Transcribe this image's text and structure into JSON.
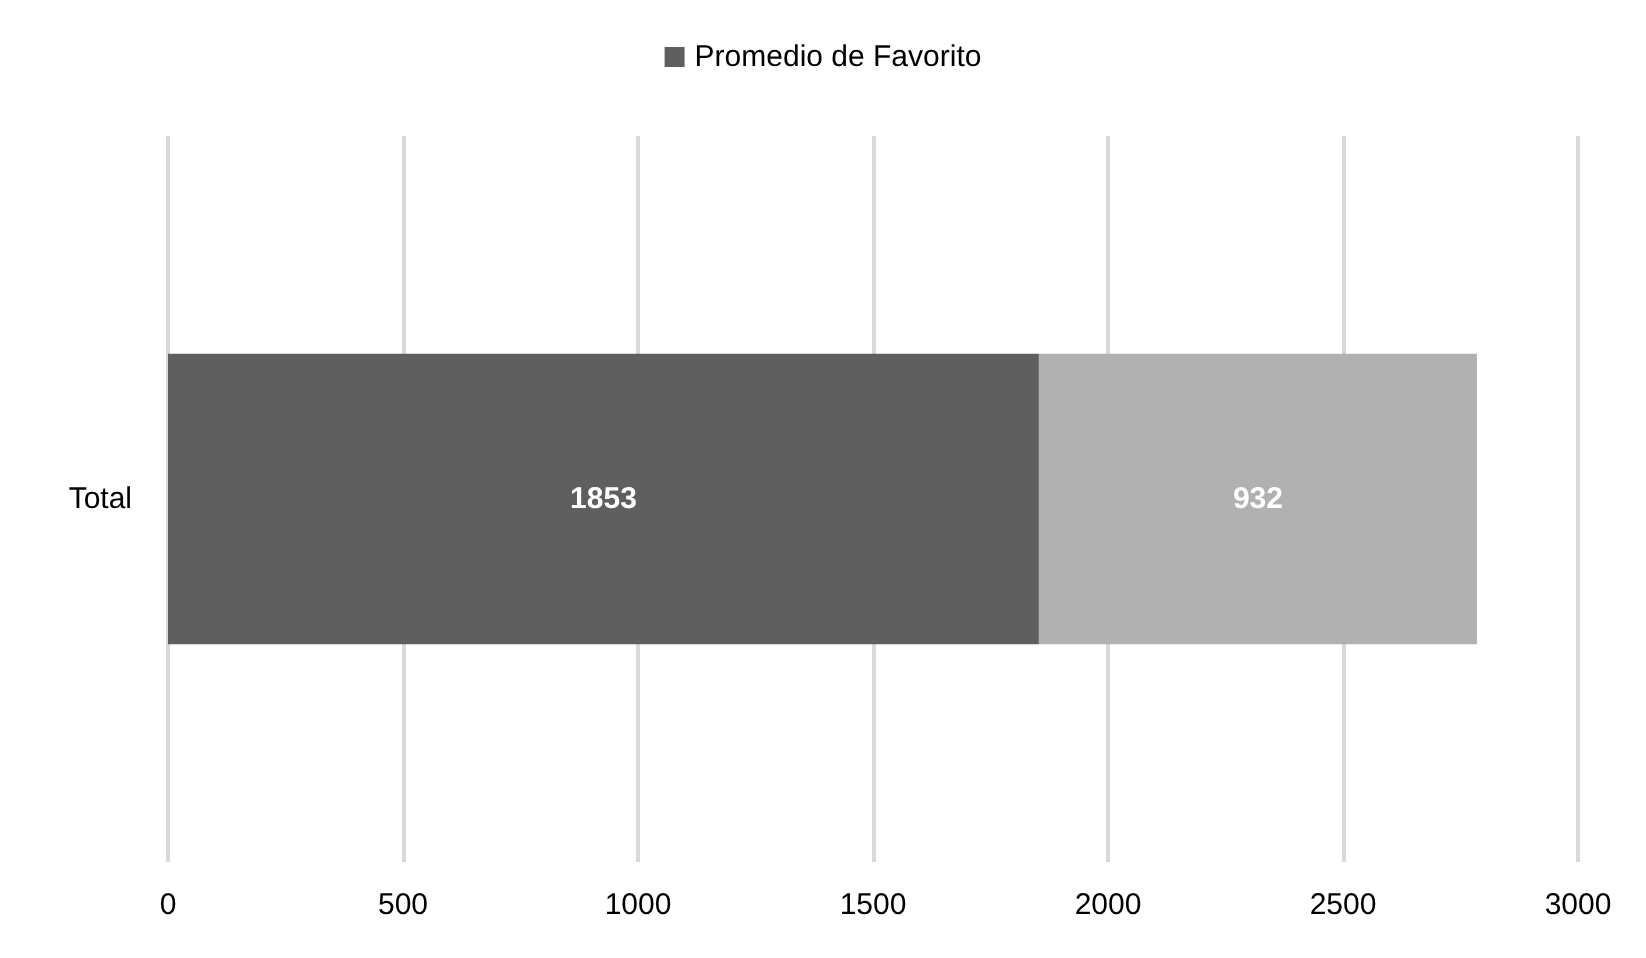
{
  "chart_data": {
    "type": "bar",
    "orientation": "horizontal",
    "stacked": true,
    "categories": [
      "Total"
    ],
    "series": [
      {
        "name": "Promedio de Favorito",
        "color": "#5f5f5f",
        "values": [
          1853
        ]
      },
      {
        "color": "#b1b1b1",
        "values": [
          932
        ]
      }
    ],
    "xlim": [
      0,
      3000
    ],
    "xticks": [
      0,
      500,
      1000,
      1500,
      2000,
      2500,
      3000
    ],
    "grid": "x",
    "legend": "top",
    "data_labels": true
  }
}
